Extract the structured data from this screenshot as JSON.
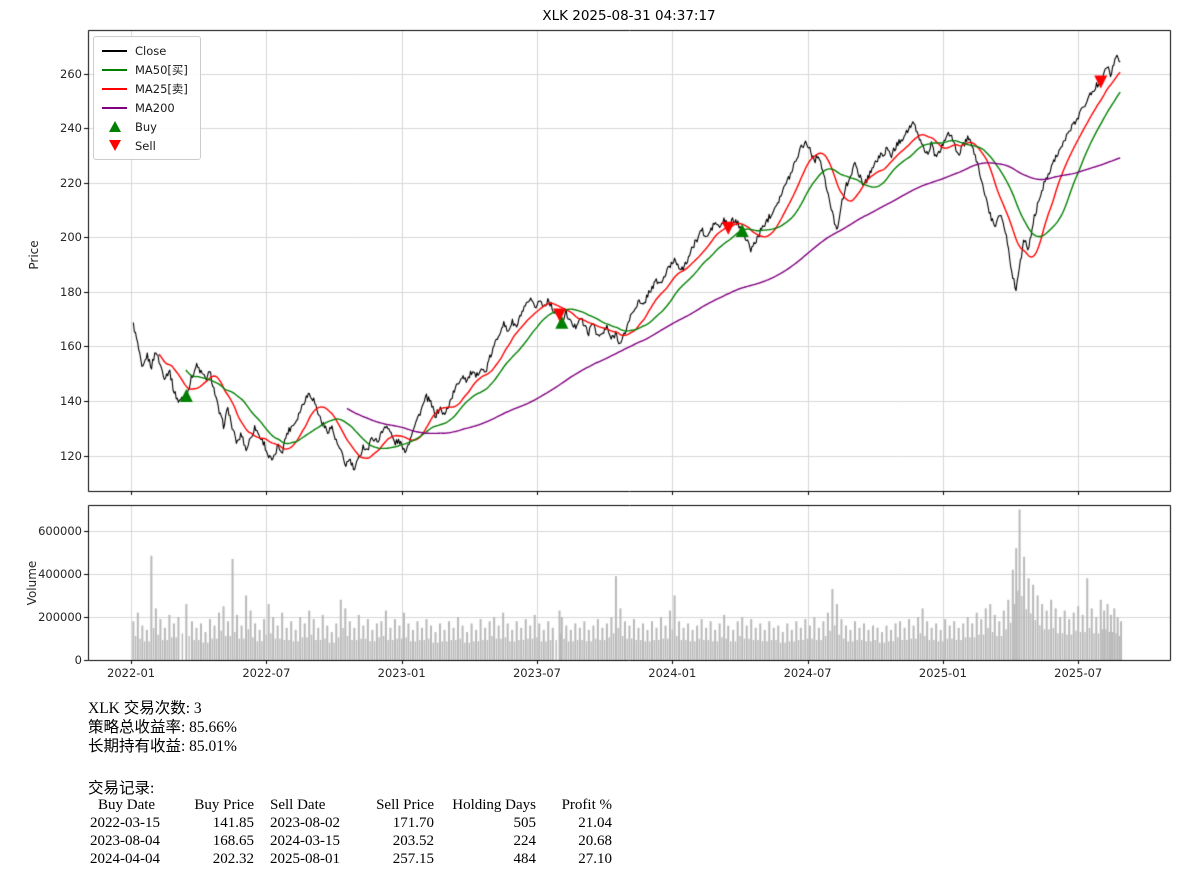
{
  "stats": {
    "trade_count": "XLK 交易次数: 3",
    "total_return": "策略总收益率: 85.66%",
    "hold_return": "长期持有收益: 85.01%",
    "records_title": "交易记录:"
  },
  "trades": {
    "headers": [
      "Buy Date",
      "Buy Price",
      "Sell Date",
      "Sell Price",
      "Holding Days",
      "Profit %"
    ],
    "rows": [
      [
        "2022-03-15",
        "141.85",
        "2023-08-02",
        "171.70",
        "505",
        "21.04"
      ],
      [
        "2023-08-04",
        "168.65",
        "2024-03-15",
        "203.52",
        "224",
        "20.68"
      ],
      [
        "2024-04-04",
        "202.32",
        "2025-08-01",
        "257.15",
        "484",
        "27.10"
      ]
    ]
  },
  "legend": {
    "items": [
      {
        "label": "Close",
        "color": "#000000",
        "marker": "line"
      },
      {
        "label": "MA50[买]",
        "color": "#008000",
        "marker": "line"
      },
      {
        "label": "MA25[卖]",
        "color": "#ff0000",
        "marker": "line"
      },
      {
        "label": "MA200",
        "color": "#800080",
        "marker": "line"
      },
      {
        "label": "Buy",
        "color": "#008000",
        "marker": "triangle-up"
      },
      {
        "label": "Sell",
        "color": "#ff0000",
        "marker": "triangle-down"
      }
    ]
  },
  "chart_data": {
    "type": "line",
    "title": "XLK 2025-08-31 04:37:17",
    "panels": [
      "price",
      "volume"
    ],
    "grid": true,
    "legend_position": "upper left",
    "x_axis": {
      "unit": "months since 2022-01",
      "xlim": [
        -1.91,
        46.07
      ],
      "ticks": [
        {
          "m": 0,
          "label": "2022-01"
        },
        {
          "m": 6,
          "label": "2022-07"
        },
        {
          "m": 12,
          "label": "2023-01"
        },
        {
          "m": 18,
          "label": "2023-07"
        },
        {
          "m": 24,
          "label": "2024-01"
        },
        {
          "m": 30,
          "label": "2024-07"
        },
        {
          "m": 36,
          "label": "2025-01"
        },
        {
          "m": 42,
          "label": "2025-07"
        }
      ]
    },
    "price_axis": {
      "label": "Price",
      "ylim": [
        107,
        276
      ],
      "ticks": [
        120,
        140,
        160,
        180,
        200,
        220,
        240,
        260
      ]
    },
    "volume_axis": {
      "label": "Volume",
      "ylim": [
        0,
        721000
      ],
      "ticks": [
        0,
        200000,
        400000,
        600000
      ]
    },
    "close": {
      "name": "Close",
      "color": "#000000",
      "x": [
        0.1,
        0.3,
        0.5,
        0.7,
        0.9,
        1.1,
        1.3,
        1.5,
        1.7,
        1.9,
        2.1,
        2.45,
        2.7,
        2.9,
        3.1,
        3.3,
        3.5,
        3.7,
        3.9,
        4.1,
        4.3,
        4.5,
        4.7,
        4.9,
        5.1,
        5.3,
        5.5,
        5.7,
        5.9,
        6.1,
        6.3,
        6.5,
        6.7,
        6.9,
        7.1,
        7.3,
        7.5,
        7.7,
        7.9,
        8.1,
        8.3,
        8.5,
        8.7,
        8.9,
        9.1,
        9.3,
        9.5,
        9.7,
        9.9,
        10.1,
        10.3,
        10.5,
        10.7,
        10.9,
        11.1,
        11.3,
        11.5,
        11.7,
        11.9,
        12.1,
        12.3,
        12.5,
        12.7,
        12.9,
        13.1,
        13.3,
        13.5,
        13.7,
        13.9,
        14.1,
        14.3,
        14.5,
        14.7,
        14.9,
        15.1,
        15.3,
        15.5,
        15.7,
        15.9,
        16.1,
        16.3,
        16.5,
        16.7,
        16.9,
        17.1,
        17.3,
        17.5,
        17.7,
        17.9,
        18.1,
        18.3,
        18.5,
        18.7,
        19.0,
        19.1,
        19.3,
        19.5,
        19.7,
        19.9,
        20.1,
        20.3,
        20.5,
        20.7,
        20.9,
        21.1,
        21.3,
        21.5,
        21.7,
        21.9,
        22.1,
        22.3,
        22.5,
        22.7,
        22.9,
        23.1,
        23.3,
        23.5,
        23.7,
        23.9,
        24.1,
        24.3,
        24.5,
        24.7,
        24.9,
        25.1,
        25.3,
        25.5,
        25.7,
        25.9,
        26.1,
        26.3,
        26.48,
        26.7,
        26.9,
        27.1,
        27.3,
        27.5,
        27.7,
        27.9,
        28.1,
        28.3,
        28.5,
        28.7,
        28.9,
        29.1,
        29.3,
        29.5,
        29.7,
        29.9,
        30.1,
        30.3,
        30.5,
        30.7,
        30.9,
        31.1,
        31.3,
        31.5,
        31.7,
        31.9,
        32.1,
        32.3,
        32.5,
        32.7,
        32.9,
        33.1,
        33.3,
        33.5,
        33.7,
        33.9,
        34.1,
        34.3,
        34.5,
        34.7,
        34.9,
        35.1,
        35.3,
        35.5,
        35.7,
        35.9,
        36.1,
        36.3,
        36.5,
        36.7,
        36.9,
        37.1,
        37.3,
        37.5,
        37.7,
        37.9,
        38.1,
        38.3,
        38.5,
        38.7,
        38.9,
        39.1,
        39.25,
        39.4,
        39.6,
        39.8,
        40.0,
        40.2,
        40.4,
        40.6,
        40.8,
        41.0,
        41.2,
        41.4,
        41.6,
        41.8,
        42.0,
        42.2,
        42.4,
        42.6,
        42.8,
        43.0,
        43.15,
        43.3,
        43.45,
        43.6,
        43.75,
        43.9
      ],
      "y": [
        168.0,
        160.5,
        151.0,
        157.0,
        152.5,
        158.5,
        153.0,
        148.5,
        151.5,
        143.5,
        140.0,
        141.85,
        149.0,
        153.0,
        150.5,
        148.0,
        150.5,
        143.5,
        136.0,
        131.0,
        137.5,
        129.5,
        124.5,
        128.0,
        122.0,
        126.5,
        130.5,
        127.0,
        124.5,
        119.5,
        118.0,
        123.5,
        121.5,
        128.0,
        130.5,
        132.5,
        136.5,
        140.5,
        143.0,
        140.5,
        135.5,
        131.5,
        129.0,
        130.5,
        125.0,
        121.5,
        116.5,
        118.5,
        114.5,
        119.0,
        123.5,
        122.0,
        127.0,
        125.0,
        128.0,
        131.5,
        128.5,
        124.5,
        125.5,
        121.5,
        124.0,
        130.0,
        133.5,
        137.5,
        141.5,
        139.0,
        134.5,
        137.5,
        134.5,
        139.0,
        143.0,
        146.5,
        149.5,
        147.5,
        150.5,
        148.5,
        152.5,
        150.0,
        155.5,
        160.0,
        164.5,
        168.5,
        165.5,
        169.0,
        167.0,
        172.0,
        174.5,
        177.0,
        174.0,
        177.0,
        174.5,
        177.5,
        173.5,
        171.7,
        168.65,
        172.5,
        168.5,
        167.0,
        171.0,
        167.5,
        165.0,
        169.0,
        163.5,
        164.5,
        167.0,
        162.5,
        165.0,
        160.5,
        165.0,
        170.0,
        173.5,
        176.5,
        174.5,
        179.0,
        181.5,
        184.0,
        183.0,
        186.5,
        189.5,
        192.0,
        189.5,
        188.0,
        192.5,
        196.0,
        199.5,
        203.0,
        199.5,
        202.5,
        205.5,
        203.5,
        206.5,
        203.52,
        206.5,
        205.0,
        202.32,
        198.5,
        195.5,
        198.5,
        202.0,
        205.0,
        207.5,
        210.5,
        213.5,
        217.0,
        220.5,
        224.5,
        229.0,
        233.0,
        235.0,
        232.5,
        228.0,
        230.5,
        223.0,
        216.0,
        208.5,
        203.0,
        212.0,
        218.5,
        223.0,
        226.5,
        223.0,
        219.0,
        222.5,
        226.0,
        228.5,
        230.5,
        232.0,
        230.0,
        233.0,
        235.5,
        237.5,
        240.0,
        241.5,
        237.5,
        233.5,
        230.5,
        234.5,
        228.5,
        232.0,
        236.5,
        238.0,
        234.0,
        230.5,
        233.5,
        236.5,
        233.0,
        228.0,
        221.5,
        214.5,
        208.0,
        203.5,
        209.5,
        204.5,
        196.5,
        185.0,
        181.0,
        190.0,
        199.0,
        195.5,
        205.5,
        212.0,
        217.5,
        222.0,
        226.0,
        229.5,
        232.5,
        235.5,
        238.5,
        241.5,
        244.5,
        247.5,
        250.5,
        253.0,
        255.5,
        257.15,
        261.0,
        263.5,
        259.5,
        264.5,
        266.5,
        263.0
      ]
    },
    "moving_averages": [
      {
        "name": "MA25[卖]",
        "color": "#ff0000",
        "window_days": 25
      },
      {
        "name": "MA50[买]",
        "color": "#008000",
        "window_days": 50
      },
      {
        "name": "MA200",
        "color": "#800080",
        "window_days": 200
      }
    ],
    "volume": {
      "color": "#b9b9b9",
      "values": [
        180000,
        220000,
        160000,
        140000,
        485000,
        240000,
        190000,
        150000,
        210000,
        170000,
        200000,
        260000,
        180000,
        150000,
        170000,
        130000,
        190000,
        160000,
        220000,
        250000,
        180000,
        470000,
        210000,
        160000,
        300000,
        230000,
        170000,
        140000,
        190000,
        260000,
        200000,
        160000,
        220000,
        150000,
        180000,
        140000,
        200000,
        170000,
        230000,
        190000,
        150000,
        210000,
        160000,
        130000,
        170000,
        280000,
        240000,
        180000,
        150000,
        210000,
        160000,
        190000,
        140000,
        170000,
        180000,
        230000,
        150000,
        190000,
        160000,
        220000,
        170000,
        140000,
        180000,
        150000,
        190000,
        160000,
        130000,
        170000,
        140000,
        180000,
        150000,
        200000,
        160000,
        130000,
        170000,
        140000,
        190000,
        150000,
        180000,
        200000,
        160000,
        220000,
        170000,
        140000,
        180000,
        150000,
        190000,
        160000,
        210000,
        170000,
        140000,
        180000,
        150000,
        230000,
        200000,
        160000,
        140000,
        170000,
        150000,
        180000,
        140000,
        160000,
        190000,
        150000,
        170000,
        200000,
        390000,
        240000,
        180000,
        160000,
        190000,
        150000,
        170000,
        140000,
        180000,
        150000,
        200000,
        160000,
        230000,
        300000,
        180000,
        150000,
        170000,
        140000,
        160000,
        190000,
        150000,
        180000,
        140000,
        170000,
        210000,
        160000,
        140000,
        180000,
        200000,
        160000,
        190000,
        150000,
        170000,
        140000,
        180000,
        150000,
        160000,
        130000,
        170000,
        140000,
        180000,
        150000,
        190000,
        160000,
        200000,
        150000,
        180000,
        220000,
        330000,
        260000,
        190000,
        160000,
        140000,
        180000,
        150000,
        170000,
        140000,
        160000,
        150000,
        130000,
        160000,
        140000,
        170000,
        180000,
        150000,
        190000,
        160000,
        200000,
        240000,
        180000,
        150000,
        170000,
        140000,
        190000,
        160000,
        180000,
        150000,
        170000,
        200000,
        170000,
        220000,
        190000,
        240000,
        260000,
        210000,
        180000,
        230000,
        280000,
        420000,
        520000,
        700000,
        480000,
        380000,
        350000,
        300000,
        260000,
        230000,
        280000,
        240000,
        200000,
        230000,
        190000,
        220000,
        250000,
        210000,
        380000,
        240000,
        200000,
        280000,
        230000,
        260000,
        210000,
        240000,
        200000,
        180000
      ]
    },
    "markers": {
      "buy_color": "#008000",
      "sell_color": "#ff0000",
      "buy": [
        {
          "date": "2022-03-15",
          "m": 2.45,
          "price": 141.85
        },
        {
          "date": "2023-08-04",
          "m": 19.1,
          "price": 168.65
        },
        {
          "date": "2024-04-04",
          "m": 27.1,
          "price": 202.32
        }
      ],
      "sell": [
        {
          "date": "2023-08-02",
          "m": 19.0,
          "price": 171.7
        },
        {
          "date": "2024-03-15",
          "m": 26.48,
          "price": 203.52
        },
        {
          "date": "2025-08-01",
          "m": 43.0,
          "price": 257.15
        }
      ]
    }
  }
}
